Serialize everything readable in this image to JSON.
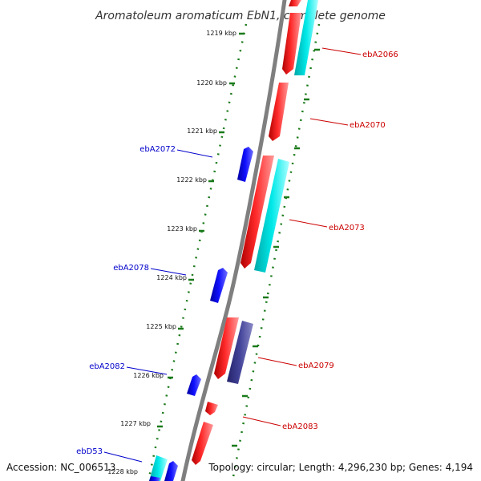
{
  "title": "Aromatoleum aromaticum EbN1, complete genome",
  "footer": {
    "accession": "Accession: NC_006513",
    "summary": "Topology: circular; Length: 4,296,230 bp; Genes: 4,194"
  },
  "colors": {
    "backbone": "#808080",
    "forward_gene": "#ff0000",
    "reverse_gene": "#0000ff",
    "cyan_feature": "#00e5e5",
    "navy_feature": "#3a3a8c",
    "tick": "#1a7a1a",
    "label_forward": "#cc0000",
    "label_reverse": "#0000cc"
  },
  "ticks": [
    {
      "label": "1219 kbp"
    },
    {
      "label": "1220 kbp"
    },
    {
      "label": "1221 kbp"
    },
    {
      "label": "1222 kbp"
    },
    {
      "label": "1223 kbp"
    },
    {
      "label": "1224 kbp"
    },
    {
      "label": "1225 kbp"
    },
    {
      "label": "1226 kbp"
    },
    {
      "label": "1227 kbp"
    },
    {
      "label": "1228 kbp"
    }
  ],
  "labels": [
    {
      "text": "ebA2066",
      "side": "right"
    },
    {
      "text": "ebA2070",
      "side": "right"
    },
    {
      "text": "ebA2072",
      "side": "left"
    },
    {
      "text": "ebA2073",
      "side": "right"
    },
    {
      "text": "ebA2078",
      "side": "left"
    },
    {
      "text": "ebA2079",
      "side": "right"
    },
    {
      "text": "ebA2082",
      "side": "left"
    },
    {
      "text": "ebA2083",
      "side": "right"
    },
    {
      "text": "ebD53",
      "side": "left"
    }
  ]
}
